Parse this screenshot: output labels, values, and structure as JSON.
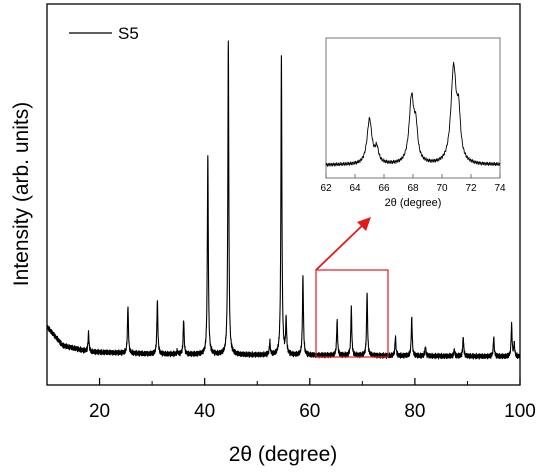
{
  "chart_data": [
    {
      "id": "main",
      "type": "line",
      "xlabel": "2θ (degree)",
      "ylabel": "Intensity (arb. units)",
      "xlim": [
        10,
        100
      ],
      "ylim": [
        0,
        1
      ],
      "x_ticks": [
        20,
        40,
        60,
        80,
        100
      ],
      "y_tick_labels": false,
      "legend": {
        "position": "top-left"
      },
      "series": [
        {
          "name": "S5",
          "color": "#000000",
          "baseline": [
            [
              10,
              0.145
            ],
            [
              13,
              0.085
            ],
            [
              18,
              0.065
            ],
            [
              30,
              0.058
            ],
            [
              50,
              0.055
            ],
            [
              100,
              0.05
            ]
          ],
          "peaks": [
            [
              17.9,
              0.06
            ],
            [
              25.4,
              0.15
            ],
            [
              31.0,
              0.17
            ],
            [
              34.8,
              0.01
            ],
            [
              36.0,
              0.11
            ],
            [
              40.6,
              0.63
            ],
            [
              44.5,
              0.99
            ],
            [
              52.4,
              0.04
            ],
            [
              54.6,
              0.94
            ],
            [
              55.5,
              0.11
            ],
            [
              58.7,
              0.25
            ],
            [
              65.2,
              0.11
            ],
            [
              67.9,
              0.15
            ],
            [
              70.9,
              0.2
            ],
            [
              76.3,
              0.06
            ],
            [
              79.4,
              0.12
            ],
            [
              82.0,
              0.03
            ],
            [
              87.5,
              0.02
            ],
            [
              89.2,
              0.06
            ],
            [
              95.0,
              0.06
            ],
            [
              98.4,
              0.1
            ],
            [
              98.9,
              0.04
            ]
          ]
        }
      ],
      "highlight_box": {
        "x_range": [
          61,
          75
        ],
        "color": "#e31a1c"
      }
    },
    {
      "id": "inset",
      "type": "line",
      "xlabel": "2θ (degree)",
      "xlim": [
        62,
        74
      ],
      "x_ticks": [
        62,
        64,
        66,
        68,
        70,
        72,
        74
      ],
      "series": [
        {
          "name": "S5",
          "color": "#000000",
          "baseline": 0.12,
          "peaks": [
            [
              65.0,
              0.38,
              0.2
            ],
            [
              65.5,
              0.12,
              0.15
            ],
            [
              67.9,
              0.55,
              0.2
            ],
            [
              68.2,
              0.25,
              0.15
            ],
            [
              70.8,
              0.8,
              0.22
            ],
            [
              71.15,
              0.35,
              0.15
            ]
          ]
        }
      ]
    }
  ]
}
